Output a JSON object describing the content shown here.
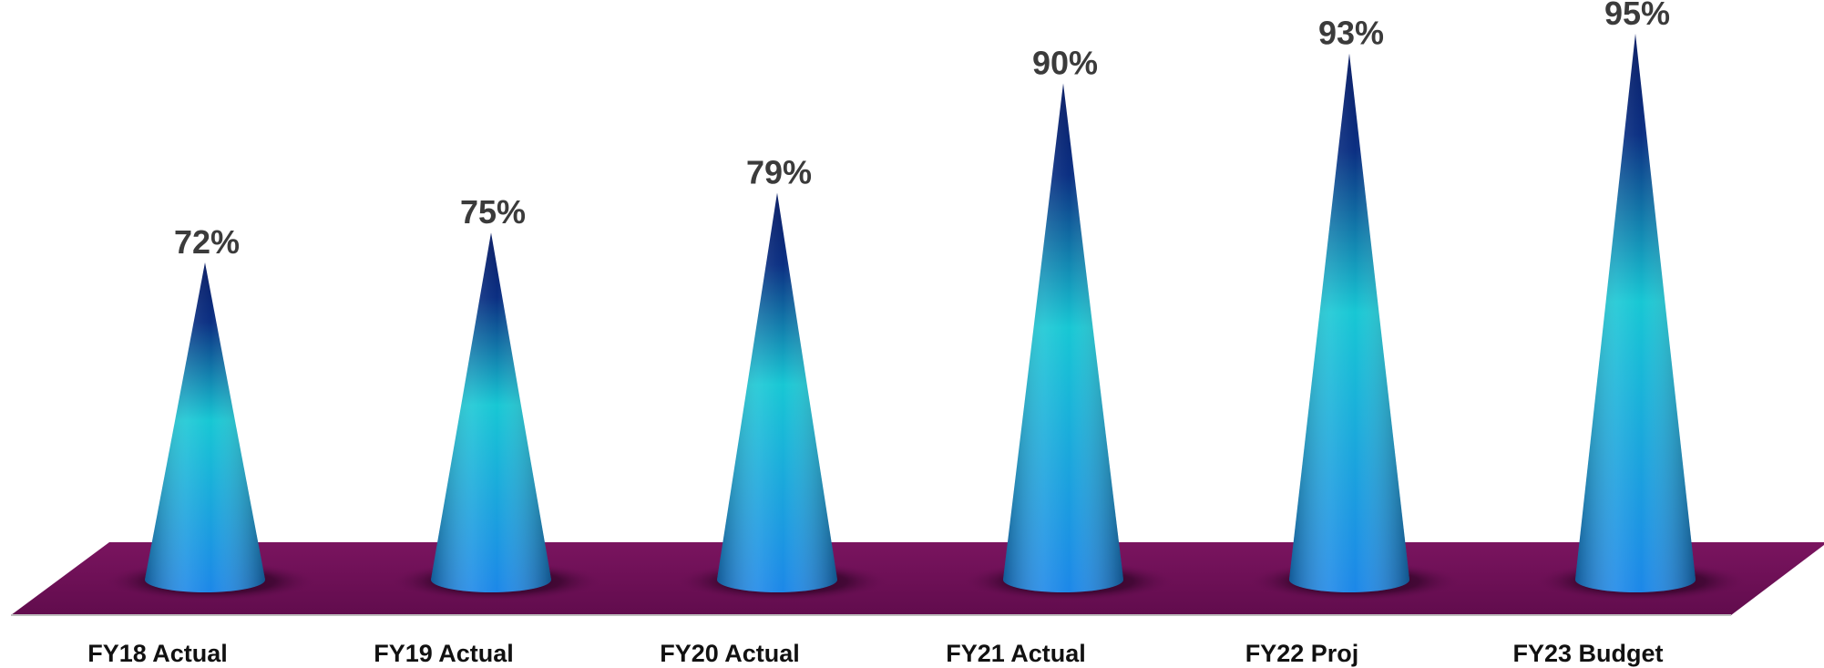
{
  "chart_data": {
    "type": "bar",
    "style": "3d-cone",
    "categories": [
      "FY18 Actual",
      "FY19 Actual",
      "FY20 Actual",
      "FY21 Actual",
      "FY22 Proj",
      "FY23 Budget"
    ],
    "values": [
      72,
      75,
      79,
      90,
      93,
      95
    ],
    "value_labels": [
      "72%",
      "75%",
      "79%",
      "90%",
      "93%",
      "95%"
    ],
    "title": "",
    "xlabel": "",
    "ylabel": "",
    "grid": false,
    "legend": "none",
    "colors": {
      "floor": "#6e0f57",
      "cone_dark": "#0b2a7a",
      "cone_mid": "#16c8d6",
      "cone_base": "#1b8ce6",
      "label_text": "#3b3b3b",
      "category_text": "#111111"
    }
  }
}
